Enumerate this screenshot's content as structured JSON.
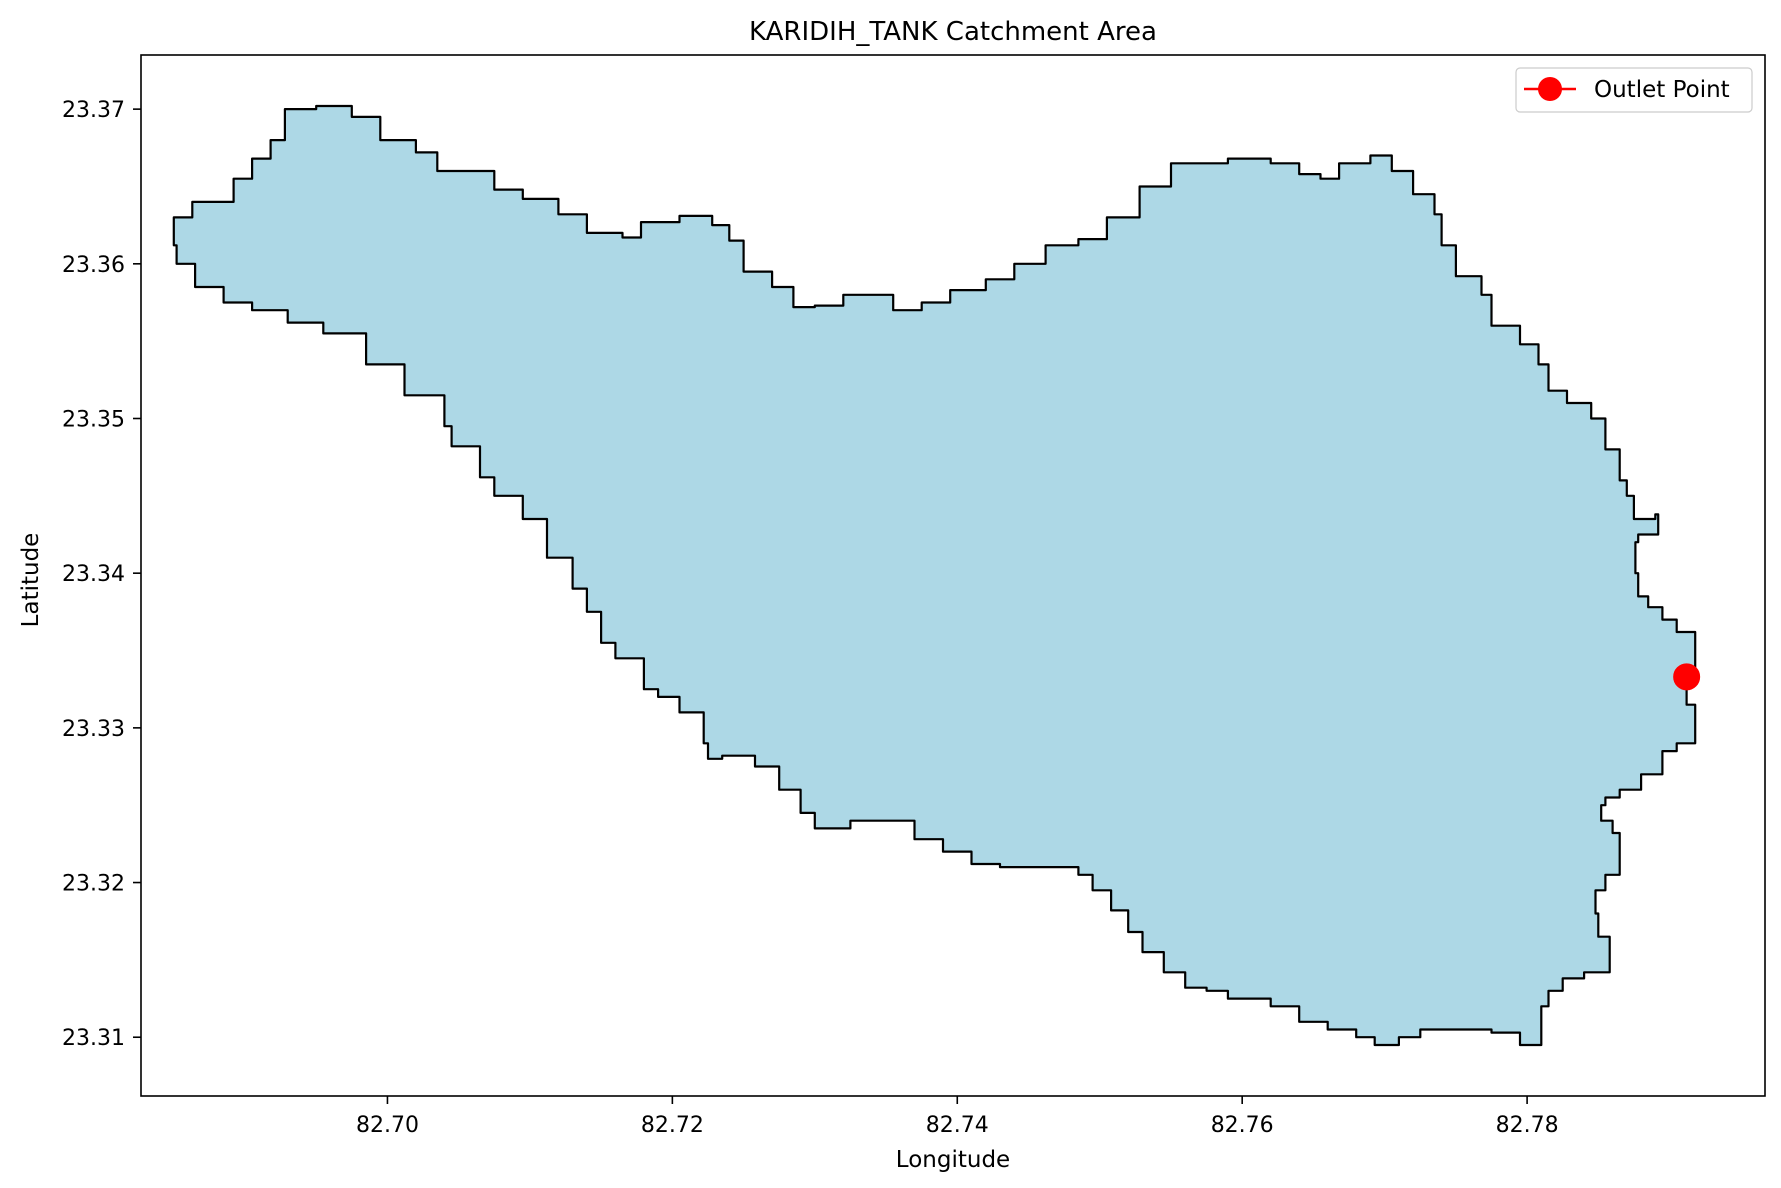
{
  "chart_data": {
    "type": "area",
    "title": "KARIDIH_TANK Catchment Area",
    "xlabel": "Longitude",
    "ylabel": "Latitude",
    "xlim": [
      82.6827,
      82.7967
    ],
    "ylim": [
      23.3062,
      23.3735
    ],
    "xticks": [
      82.7,
      82.72,
      82.74,
      82.76,
      82.78
    ],
    "xtick_labels": [
      "82.70",
      "82.72",
      "82.74",
      "82.76",
      "82.78"
    ],
    "yticks": [
      23.31,
      23.32,
      23.33,
      23.34,
      23.35,
      23.36,
      23.37
    ],
    "ytick_labels": [
      "23.31",
      "23.32",
      "23.33",
      "23.34",
      "23.35",
      "23.36",
      "23.37"
    ],
    "grid": false,
    "legend": {
      "placement": "top-right",
      "entries": [
        {
          "label": "Outlet Point",
          "color": "#ff0000",
          "marker": "circle"
        }
      ]
    },
    "catchment": {
      "fill_color": "#add8e6",
      "edge_color": "#000000",
      "boundary": [
        [
          82.688,
          23.364
        ],
        [
          82.6892,
          23.3655
        ],
        [
          82.6905,
          23.3668
        ],
        [
          82.6918,
          23.368
        ],
        [
          82.6928,
          23.37
        ],
        [
          82.695,
          23.3702
        ],
        [
          82.6975,
          23.3695
        ],
        [
          82.6995,
          23.368
        ],
        [
          82.702,
          23.3672
        ],
        [
          82.7035,
          23.366
        ],
        [
          82.7065,
          23.366
        ],
        [
          82.7075,
          23.3648
        ],
        [
          82.7095,
          23.3642
        ],
        [
          82.712,
          23.3632
        ],
        [
          82.714,
          23.362
        ],
        [
          82.7165,
          23.3617
        ],
        [
          82.7178,
          23.3627
        ],
        [
          82.7205,
          23.3631
        ],
        [
          82.7228,
          23.3625
        ],
        [
          82.724,
          23.3615
        ],
        [
          82.725,
          23.3595
        ],
        [
          82.727,
          23.3585
        ],
        [
          82.7285,
          23.3572
        ],
        [
          82.73,
          23.3573
        ],
        [
          82.732,
          23.358
        ],
        [
          82.7335,
          23.358
        ],
        [
          82.7355,
          23.357
        ],
        [
          82.7375,
          23.3575
        ],
        [
          82.7395,
          23.3583
        ],
        [
          82.742,
          23.359
        ],
        [
          82.744,
          23.36
        ],
        [
          82.7462,
          23.3612
        ],
        [
          82.7485,
          23.3616
        ],
        [
          82.7505,
          23.363
        ],
        [
          82.7528,
          23.365
        ],
        [
          82.755,
          23.3665
        ],
        [
          82.7572,
          23.3665
        ],
        [
          82.759,
          23.3668
        ],
        [
          82.7605,
          23.3668
        ],
        [
          82.762,
          23.3665
        ],
        [
          82.764,
          23.3658
        ],
        [
          82.7655,
          23.3655
        ],
        [
          82.7668,
          23.3665
        ],
        [
          82.769,
          23.367
        ],
        [
          82.7705,
          23.366
        ],
        [
          82.772,
          23.3645
        ],
        [
          82.7735,
          23.3632
        ],
        [
          82.774,
          23.3612
        ],
        [
          82.775,
          23.3592
        ],
        [
          82.7768,
          23.358
        ],
        [
          82.7775,
          23.356
        ],
        [
          82.7795,
          23.3548
        ],
        [
          82.7808,
          23.3535
        ],
        [
          82.7815,
          23.3518
        ],
        [
          82.7828,
          23.351
        ],
        [
          82.7845,
          23.35
        ],
        [
          82.7855,
          23.348
        ],
        [
          82.7865,
          23.346
        ],
        [
          82.787,
          23.345
        ],
        [
          82.7875,
          23.3435
        ],
        [
          82.789,
          23.3438
        ],
        [
          82.7892,
          23.3425
        ],
        [
          82.7878,
          23.342
        ],
        [
          82.7876,
          23.34
        ],
        [
          82.7878,
          23.3385
        ],
        [
          82.7885,
          23.3378
        ],
        [
          82.7895,
          23.337
        ],
        [
          82.7905,
          23.3362
        ],
        [
          82.7918,
          23.3352
        ],
        [
          82.7918,
          23.3338
        ],
        [
          82.7912,
          23.3333
        ],
        [
          82.7912,
          23.3315
        ],
        [
          82.7918,
          23.33
        ],
        [
          82.7918,
          23.329
        ],
        [
          82.7905,
          23.3285
        ],
        [
          82.7895,
          23.327
        ],
        [
          82.788,
          23.326
        ],
        [
          82.7865,
          23.3255
        ],
        [
          82.7855,
          23.325
        ],
        [
          82.7852,
          23.324
        ],
        [
          82.786,
          23.3232
        ],
        [
          82.7865,
          23.3218
        ],
        [
          82.7865,
          23.3205
        ],
        [
          82.7855,
          23.3195
        ],
        [
          82.7848,
          23.318
        ],
        [
          82.785,
          23.3165
        ],
        [
          82.7858,
          23.3155
        ],
        [
          82.7858,
          23.3142
        ],
        [
          82.784,
          23.3138
        ],
        [
          82.7825,
          23.313
        ],
        [
          82.7815,
          23.312
        ],
        [
          82.781,
          23.3105
        ],
        [
          82.781,
          23.3095
        ],
        [
          82.7795,
          23.3095
        ],
        [
          82.7795,
          23.3103
        ],
        [
          82.7775,
          23.3105
        ],
        [
          82.7755,
          23.3105
        ],
        [
          82.774,
          23.3105
        ],
        [
          82.7725,
          23.31
        ],
        [
          82.771,
          23.3095
        ],
        [
          82.7693,
          23.31
        ],
        [
          82.768,
          23.3105
        ],
        [
          82.766,
          23.311
        ],
        [
          82.764,
          23.312
        ],
        [
          82.762,
          23.3125
        ],
        [
          82.7605,
          23.3125
        ],
        [
          82.759,
          23.313
        ],
        [
          82.7575,
          23.3132
        ],
        [
          82.756,
          23.3142
        ],
        [
          82.7545,
          23.3155
        ],
        [
          82.753,
          23.3168
        ],
        [
          82.752,
          23.3182
        ],
        [
          82.7508,
          23.3195
        ],
        [
          82.7495,
          23.3205
        ],
        [
          82.7485,
          23.321
        ],
        [
          82.746,
          23.321
        ],
        [
          82.743,
          23.3212
        ],
        [
          82.741,
          23.322
        ],
        [
          82.739,
          23.3228
        ],
        [
          82.737,
          23.324
        ],
        [
          82.7345,
          23.324
        ],
        [
          82.7325,
          23.3235
        ],
        [
          82.73,
          23.3245
        ],
        [
          82.729,
          23.326
        ],
        [
          82.7275,
          23.3275
        ],
        [
          82.7258,
          23.3282
        ],
        [
          82.7235,
          23.328
        ],
        [
          82.7225,
          23.329
        ],
        [
          82.7222,
          23.331
        ],
        [
          82.7205,
          23.332
        ],
        [
          82.719,
          23.3325
        ],
        [
          82.718,
          23.3345
        ],
        [
          82.716,
          23.3355
        ],
        [
          82.715,
          23.3375
        ],
        [
          82.714,
          23.339
        ],
        [
          82.713,
          23.341
        ],
        [
          82.7112,
          23.3435
        ],
        [
          82.7095,
          23.345
        ],
        [
          82.7075,
          23.3462
        ],
        [
          82.7065,
          23.3482
        ],
        [
          82.7045,
          23.3495
        ],
        [
          82.704,
          23.3515
        ],
        [
          82.7012,
          23.3535
        ],
        [
          82.6985,
          23.3555
        ],
        [
          82.6955,
          23.3562
        ],
        [
          82.693,
          23.357
        ],
        [
          82.6905,
          23.3575
        ],
        [
          82.6885,
          23.3585
        ],
        [
          82.6865,
          23.36
        ],
        [
          82.6852,
          23.3612
        ],
        [
          82.685,
          23.363
        ],
        [
          82.6863,
          23.364
        ]
      ],
      "outlet_point": {
        "lon": 82.7912,
        "lat": 23.3333
      }
    }
  }
}
